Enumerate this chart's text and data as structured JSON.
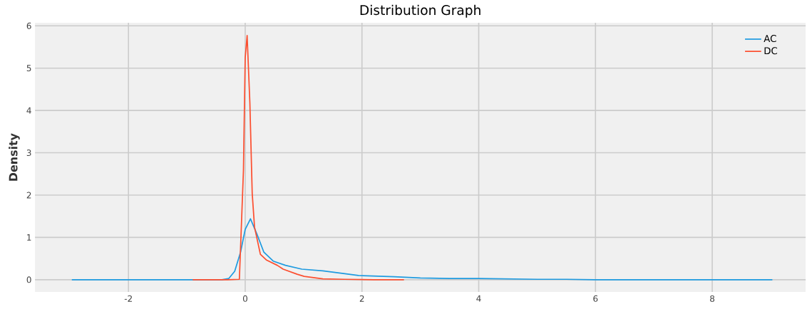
{
  "chart_data": {
    "type": "line",
    "title": "Distribution Graph",
    "ylabel": "Density",
    "xlim": [
      -3.6,
      9.6
    ],
    "ylim": [
      -0.29,
      6.07
    ],
    "xticks": [
      -2,
      0,
      2,
      4,
      6,
      8
    ],
    "yticks": [
      0,
      1,
      2,
      3,
      4,
      5,
      6
    ],
    "grid": true,
    "legend": "top right",
    "series": [
      {
        "name": "AC",
        "color": "#1f9be0",
        "x": [
          -2.97,
          -1.0,
          -0.4,
          -0.28,
          -0.18,
          -0.08,
          0.0,
          0.09,
          0.2,
          0.32,
          0.48,
          0.69,
          0.97,
          1.33,
          1.66,
          1.94,
          2.55,
          3.0,
          3.5,
          4.0,
          4.5,
          5.0,
          5.5,
          6.0,
          7.0,
          8.0,
          9.03
        ],
        "values": [
          0,
          0,
          0,
          0.03,
          0.2,
          0.65,
          1.19,
          1.44,
          1.08,
          0.65,
          0.44,
          0.34,
          0.25,
          0.21,
          0.15,
          0.1,
          0.07,
          0.04,
          0.03,
          0.03,
          0.02,
          0.01,
          0.01,
          0,
          0,
          0,
          0
        ]
      },
      {
        "name": "DC",
        "color": "#fc4f30",
        "x": [
          -0.9,
          -0.3,
          -0.1,
          -0.03,
          0.0,
          0.033,
          0.08,
          0.12,
          0.16,
          0.26,
          0.36,
          0.55,
          0.65,
          0.89,
          1.01,
          1.33,
          1.7,
          2.2,
          2.72
        ],
        "values": [
          0,
          0,
          0.01,
          2.58,
          5.25,
          5.77,
          4.18,
          2.04,
          1.24,
          0.6,
          0.47,
          0.34,
          0.25,
          0.13,
          0.08,
          0.02,
          0.01,
          0,
          0
        ]
      }
    ]
  }
}
